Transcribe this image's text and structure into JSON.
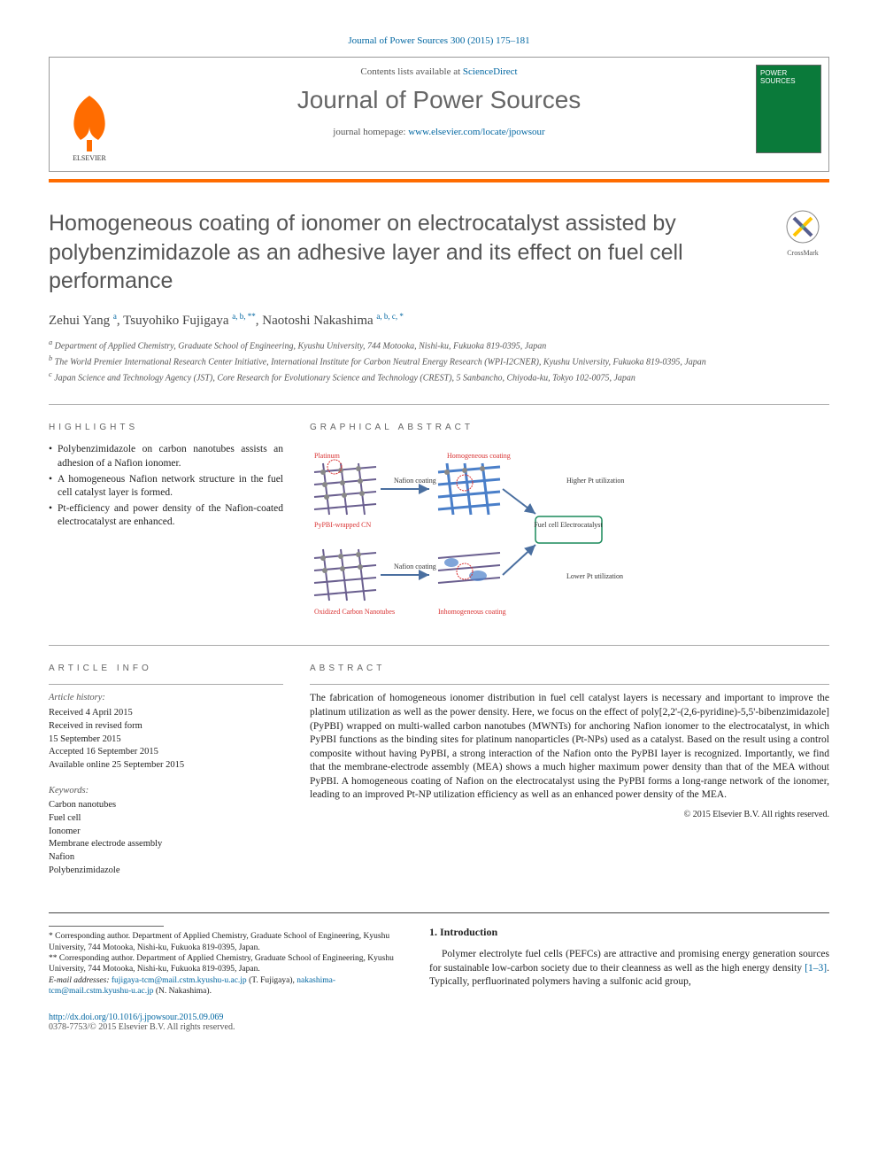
{
  "citation": "Journal of Power Sources 300 (2015) 175–181",
  "header": {
    "contents_prefix": "Contents lists available at ",
    "contents_link": "ScienceDirect",
    "journal_name": "Journal of Power Sources",
    "homepage_prefix": "journal homepage: ",
    "homepage_url": "www.elsevier.com/locate/jpowsour",
    "publisher": "ELSEVIER",
    "cover_text": "POWER SOURCES"
  },
  "crossmark": "CrossMark",
  "title": "Homogeneous coating of ionomer on electrocatalyst assisted by polybenzimidazole as an adhesive layer and its effect on fuel cell performance",
  "authors": [
    {
      "name": "Zehui Yang",
      "sup": "a"
    },
    {
      "name": "Tsuyohiko Fujigaya",
      "sup": "a, b, **"
    },
    {
      "name": "Naotoshi Nakashima",
      "sup": "a, b, c, *"
    }
  ],
  "affiliations": [
    {
      "sup": "a",
      "text": "Department of Applied Chemistry, Graduate School of Engineering, Kyushu University, 744 Motooka, Nishi-ku, Fukuoka 819-0395, Japan"
    },
    {
      "sup": "b",
      "text": "The World Premier International Research Center Initiative, International Institute for Carbon Neutral Energy Research (WPI-I2CNER), Kyushu University, Fukuoka 819-0395, Japan"
    },
    {
      "sup": "c",
      "text": "Japan Science and Technology Agency (JST), Core Research for Evolutionary Science and Technology (CREST), 5 Sanbancho, Chiyoda-ku, Tokyo 102-0075, Japan"
    }
  ],
  "headings": {
    "highlights": "HIGHLIGHTS",
    "graphical_abstract": "GRAPHICAL ABSTRACT",
    "article_info": "ARTICLE INFO",
    "abstract": "ABSTRACT",
    "introduction": "1. Introduction"
  },
  "highlights": [
    "Polybenzimidazole on carbon nanotubes assists an adhesion of a Nafion ionomer.",
    "A homogeneous Nafion network structure in the fuel cell catalyst layer is formed.",
    "Pt-efficiency and power density of the Nafion-coated electrocatalyst are enhanced."
  ],
  "graphical_abstract": {
    "labels": {
      "platinum": "Platinum",
      "homogeneous": "Homogeneous coating",
      "nafion": "Nafion coating",
      "pypbi": "PyPBI-wrapped CN",
      "higher": "Higher Pt utilization",
      "fuelcell": "Fuel cell Electrocatalyst",
      "lower": "Lower Pt utilization",
      "oxidized": "Oxidized Carbon Nanotubes",
      "inhomogeneous": "Inhomogeneous coating"
    },
    "colors": {
      "tube": "#6a5f8f",
      "pt": "#888888",
      "nafion_blue": "#4a7fc9",
      "red_line": "#d93333",
      "box_border": "#1a8a5a",
      "arrow": "#4a6fa0"
    }
  },
  "article_info": {
    "history_heading": "Article history:",
    "history": [
      "Received 4 April 2015",
      "Received in revised form",
      "15 September 2015",
      "Accepted 16 September 2015",
      "Available online 25 September 2015"
    ],
    "keywords_heading": "Keywords:",
    "keywords": [
      "Carbon nanotubes",
      "Fuel cell",
      "Ionomer",
      "Membrane electrode assembly",
      "Nafion",
      "Polybenzimidazole"
    ]
  },
  "abstract": "The fabrication of homogeneous ionomer distribution in fuel cell catalyst layers is necessary and important to improve the platinum utilization as well as the power density. Here, we focus on the effect of poly[2,2'-(2,6-pyridine)-5,5'-bibenzimidazole] (PyPBI) wrapped on multi-walled carbon nanotubes (MWNTs) for anchoring Nafion ionomer to the electrocatalyst, in which PyPBI functions as the binding sites for platinum nanoparticles (Pt-NPs) used as a catalyst. Based on the result using a control composite without having PyPBI, a strong interaction of the Nafion onto the PyPBI layer is recognized. Importantly, we find that the membrane-electrode assembly (MEA) shows a much higher maximum power density than that of the MEA without PyPBI. A homogeneous coating of Nafion on the electrocatalyst using the PyPBI forms a long-range network of the ionomer, leading to an improved Pt-NP utilization efficiency as well as an enhanced power density of the MEA.",
  "abstract_copyright": "© 2015 Elsevier B.V. All rights reserved.",
  "corresponding": {
    "star1": "* Corresponding author. Department of Applied Chemistry, Graduate School of Engineering, Kyushu University, 744 Motooka, Nishi-ku, Fukuoka 819-0395, Japan.",
    "star2": "** Corresponding author. Department of Applied Chemistry, Graduate School of Engineering, Kyushu University, 744 Motooka, Nishi-ku, Fukuoka 819-0395, Japan.",
    "email_label": "E-mail addresses:",
    "email1": "fujigaya-tcm@mail.cstm.kyushu-u.ac.jp",
    "email1_name": "(T. Fujigaya),",
    "email2": "nakashima-tcm@mail.cstm.kyushu-u.ac.jp",
    "email2_name": "(N. Nakashima)."
  },
  "introduction": "Polymer electrolyte fuel cells (PEFCs) are attractive and promising energy generation sources for sustainable low-carbon society due to their cleanness as well as the high energy density [1–3]. Typically, perfluorinated polymers having a sulfonic acid group,",
  "intro_ref": "[1–3]",
  "doi": {
    "url": "http://dx.doi.org/10.1016/j.jpowsour.2015.09.069",
    "issn": "0378-7753/© 2015 Elsevier B.V. All rights reserved."
  }
}
